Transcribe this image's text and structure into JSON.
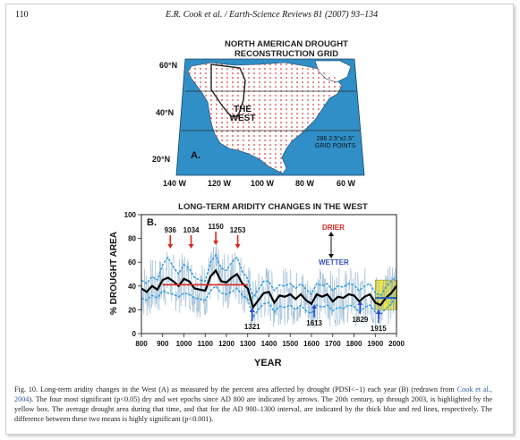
{
  "header": {
    "page_number": "110",
    "running_title": "E.R. Cook et al. / Earth-Science Reviews 81 (2007) 93–134"
  },
  "panel_a": {
    "title_line1": "NORTH AMERICAN DROUGHT",
    "title_line2": "RECONSTRUCTION GRID",
    "region_label_1": "THE",
    "region_label_2": "WEST",
    "grid_note_1": "286 2.5°x2.5°",
    "grid_note_2": "GRID POINTS",
    "panel_label": "A.",
    "lat_labels": [
      "60°N",
      "40°N",
      "20°N"
    ],
    "lon_labels": [
      "140 W",
      "120 W",
      "100 W",
      "80 W",
      "60 W"
    ],
    "colors": {
      "ocean": "#2f8fc6",
      "land": "#ffffff",
      "grid": "#d83a3a"
    }
  },
  "panel_b": {
    "title": "LONG-TERM ARIDITY CHANGES IN THE WEST",
    "panel_label": "B.",
    "drier_label": "DRIER",
    "wetter_label": "WETTER",
    "chart_data": {
      "type": "line",
      "xlabel": "YEAR",
      "ylabel": "% DROUGHT AREA",
      "xlim": [
        800,
        2000
      ],
      "ylim": [
        0,
        100
      ],
      "xticks": [
        800,
        900,
        1000,
        1100,
        1200,
        1300,
        1400,
        1500,
        1600,
        1700,
        1800,
        1900,
        2000
      ],
      "yticks": [
        0,
        20,
        40,
        60,
        80,
        100
      ],
      "series_smooth": {
        "x": [
          800,
          825,
          850,
          875,
          900,
          925,
          950,
          975,
          1000,
          1025,
          1050,
          1075,
          1100,
          1125,
          1150,
          1175,
          1200,
          1225,
          1250,
          1275,
          1300,
          1325,
          1350,
          1375,
          1400,
          1425,
          1450,
          1475,
          1500,
          1525,
          1550,
          1575,
          1600,
          1625,
          1650,
          1675,
          1700,
          1725,
          1750,
          1775,
          1800,
          1825,
          1850,
          1875,
          1900,
          1925,
          1950,
          1975,
          2000
        ],
        "values": [
          38,
          35,
          40,
          37,
          45,
          47,
          44,
          40,
          46,
          44,
          38,
          37,
          36,
          48,
          53,
          44,
          43,
          47,
          50,
          42,
          38,
          22,
          28,
          34,
          35,
          26,
          32,
          31,
          33,
          29,
          33,
          28,
          25,
          33,
          31,
          33,
          27,
          31,
          30,
          33,
          32,
          27,
          31,
          33,
          26,
          24,
          30,
          34,
          40
        ]
      },
      "series_highlow": {
        "x": [
          800,
          825,
          850,
          875,
          900,
          925,
          950,
          975,
          1000,
          1025,
          1050,
          1075,
          1100,
          1125,
          1150,
          1175,
          1200,
          1225,
          1250,
          1275,
          1300,
          1325,
          1350,
          1375,
          1400,
          1425,
          1450,
          1475,
          1500,
          1525,
          1550,
          1575,
          1600,
          1625,
          1650,
          1675,
          1700,
          1725,
          1750,
          1775,
          1800,
          1825,
          1850,
          1875,
          1900,
          1925,
          1950,
          1975,
          2000
        ],
        "values": [
          45,
          42,
          48,
          45,
          58,
          64,
          56,
          50,
          58,
          55,
          47,
          45,
          44,
          60,
          66,
          55,
          53,
          60,
          64,
          52,
          46,
          30,
          37,
          44,
          44,
          36,
          41,
          40,
          42,
          38,
          42,
          37,
          33,
          42,
          40,
          42,
          36,
          40,
          39,
          42,
          41,
          36,
          40,
          42,
          34,
          32,
          39,
          44,
          48
        ]
      },
      "series_lowband": {
        "x": [
          800,
          825,
          850,
          875,
          900,
          925,
          950,
          975,
          1000,
          1025,
          1050,
          1075,
          1100,
          1125,
          1150,
          1175,
          1200,
          1225,
          1250,
          1275,
          1300,
          1325,
          1350,
          1375,
          1400,
          1425,
          1450,
          1475,
          1500,
          1525,
          1550,
          1575,
          1600,
          1625,
          1650,
          1675,
          1700,
          1725,
          1750,
          1775,
          1800,
          1825,
          1850,
          1875,
          1900,
          1925,
          1950,
          1975,
          2000
        ],
        "values": [
          30,
          28,
          32,
          30,
          36,
          34,
          33,
          31,
          34,
          33,
          30,
          29,
          28,
          36,
          40,
          34,
          33,
          35,
          38,
          32,
          29,
          14,
          20,
          25,
          26,
          18,
          23,
          22,
          24,
          20,
          24,
          19,
          17,
          24,
          22,
          24,
          19,
          22,
          21,
          24,
          23,
          18,
          22,
          24,
          18,
          16,
          21,
          25,
          32
        ]
      },
      "mean_800_1300": 41,
      "mean_1900_2003": 30,
      "highlight_box": {
        "x": [
          1900,
          2003
        ],
        "y": [
          20,
          45
        ],
        "color": "#f4e640"
      },
      "dry_epochs": [
        {
          "year": 936,
          "label": "936"
        },
        {
          "year": 1034,
          "label": "1034"
        },
        {
          "year": 1150,
          "label": "1150"
        },
        {
          "year": 1253,
          "label": "1253"
        }
      ],
      "wet_epochs": [
        {
          "year": 1321,
          "label": "1321"
        },
        {
          "year": 1613,
          "label": "1613"
        },
        {
          "year": 1829,
          "label": "1829"
        },
        {
          "year": 1915,
          "label": "1915"
        }
      ],
      "colors": {
        "annual": "#7aa6c8",
        "smooth": "#000000",
        "band": "#2b9ae0",
        "mean": "#d8281f",
        "dry_arrow": "#d8281f",
        "wet_arrow": "#2f4fc8"
      }
    }
  },
  "caption": {
    "text_1": "Fig. 10. Long-term aridity changes in the West (A) as measured by the percent area affected by drought (PDSI<−1) each year (B) (redrawn from ",
    "link": "Cook et al., 2004",
    "text_2": "). The four most significant (p<0.05) dry and wet epochs since AD 800 are indicated by arrows. The 20th century, up through 2003, is highlighted by the yellow box. The average drought area during that time, and that for the AD 900–1300 interval, are indicated by the thick blue and red lines, respectively. The difference between these two means is highly significant (p<0.001)."
  }
}
